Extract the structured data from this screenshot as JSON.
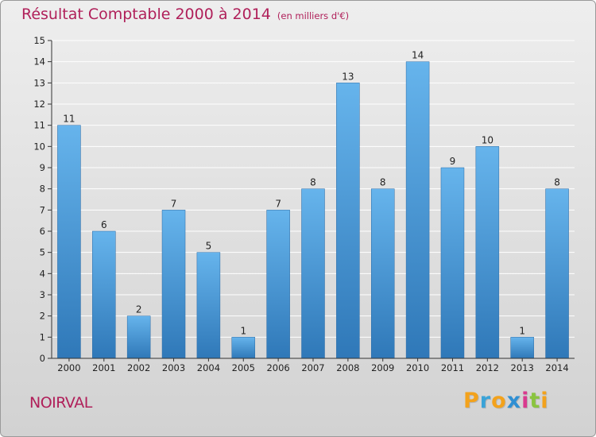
{
  "chart_data": {
    "type": "bar",
    "title": "Résultat Comptable 2000 à 2014",
    "subtitle": "(en milliers d'€)",
    "xlabel": "",
    "ylabel": "",
    "ylim": [
      0,
      15
    ],
    "yticks": [
      0,
      1,
      2,
      3,
      4,
      5,
      6,
      7,
      8,
      9,
      10,
      11,
      12,
      13,
      14,
      15
    ],
    "categories": [
      "2000",
      "2001",
      "2002",
      "2003",
      "2004",
      "2005",
      "2006",
      "2007",
      "2008",
      "2009",
      "2010",
      "2011",
      "2012",
      "2013",
      "2014"
    ],
    "values": [
      11,
      6,
      2,
      7,
      5,
      1,
      7,
      8,
      13,
      8,
      14,
      9,
      10,
      1,
      8
    ],
    "grid": true
  },
  "commune": "NOIRVAL",
  "logo": {
    "letters": [
      "P",
      "r",
      "o",
      "x",
      "i",
      "t",
      "i"
    ],
    "colors": [
      "#f3a21c",
      "#3aa3d8",
      "#f3a21c",
      "#2f8fd3",
      "#d93a8e",
      "#8ac43f",
      "#f3a21c"
    ]
  },
  "colors": {
    "title": "#b0205a",
    "bar_top": "#66b4ec",
    "bar_bottom": "#2f78b8",
    "grid": "#ffffff",
    "axis": "#333333"
  }
}
